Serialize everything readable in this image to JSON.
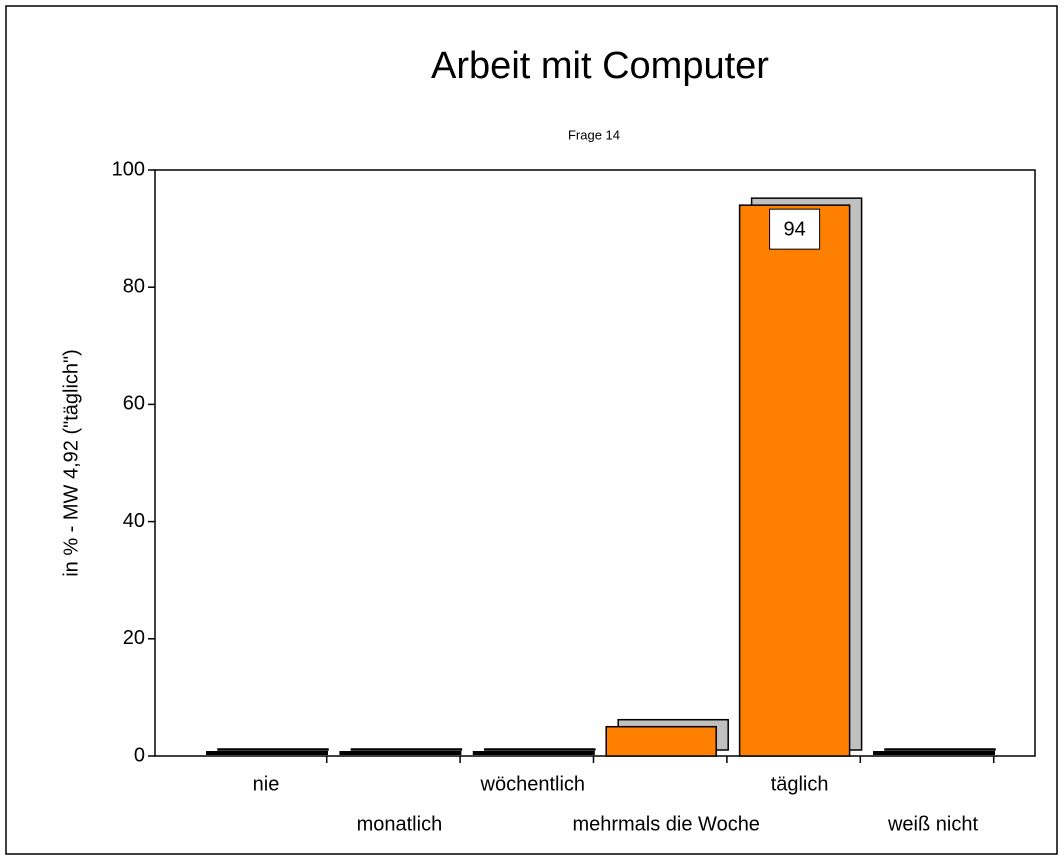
{
  "chart_data": {
    "type": "bar",
    "title": "Arbeit mit Computer",
    "subtitle": "Frage 14",
    "y_label": "in % - MW 4,92 (\"täglich\")",
    "categories": [
      "nie",
      "monatlich",
      "wöchentlich",
      "mehrmals die Woche",
      "täglich",
      "weiß nicht"
    ],
    "values": [
      0,
      0,
      0,
      5,
      94,
      0
    ],
    "value_labels": [
      null,
      null,
      null,
      null,
      "94",
      null
    ],
    "color": "#ff8000",
    "shadow_color": "#c0c0c0",
    "ylim": [
      0,
      100
    ],
    "yticks": [
      0,
      20,
      40,
      60,
      80,
      100
    ],
    "grid": false
  }
}
